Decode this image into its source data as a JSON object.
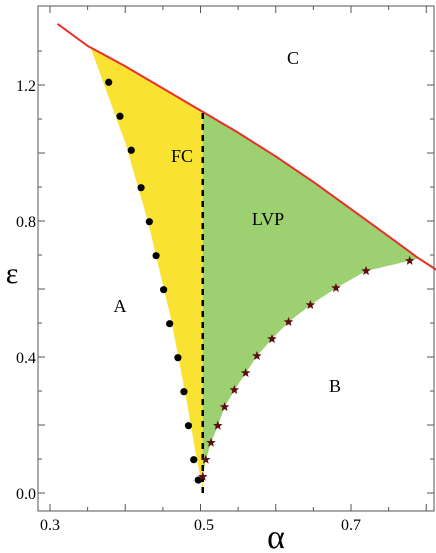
{
  "chart_data": {
    "type": "area",
    "title": "",
    "xlabel": "α",
    "ylabel": "ε",
    "xlim": [
      0.3,
      0.83
    ],
    "ylim": [
      -0.05,
      1.39
    ],
    "x_ticks": [
      "0.3",
      "0.5",
      "0.7"
    ],
    "y_ticks": [
      "0.0",
      "0.4",
      "0.8",
      "1.2"
    ],
    "x_tick_values": [
      0.3,
      0.5,
      0.7
    ],
    "y_tick_values": [
      0.0,
      0.4,
      0.8,
      1.2
    ],
    "grid": false,
    "region_labels": [
      {
        "text": "A",
        "x": 0.38,
        "y": 0.52
      },
      {
        "text": "B",
        "x": 0.67,
        "y": 0.31
      },
      {
        "text": "C",
        "x": 0.64,
        "y": 1.26
      },
      {
        "text": "FC",
        "x": 0.454,
        "y": 0.98
      },
      {
        "text": "LVP",
        "x": 0.58,
        "y": 0.82
      }
    ],
    "upper_boundary": {
      "color": "#e8302a",
      "x": [
        0.31,
        0.35,
        0.4,
        0.45,
        0.5,
        0.55,
        0.6,
        0.65,
        0.7,
        0.75,
        0.79,
        0.825
      ],
      "y": [
        1.38,
        1.315,
        1.255,
        1.19,
        1.125,
        1.06,
        0.99,
        0.915,
        0.835,
        0.755,
        0.69,
        0.64
      ]
    },
    "left_boundary": {
      "x": [
        0.354,
        0.4,
        0.43,
        0.46,
        0.48,
        0.495,
        0.503
      ],
      "y": [
        1.31,
        1.03,
        0.8,
        0.52,
        0.29,
        0.1,
        0.01
      ]
    },
    "fc_region": {
      "color": "#f9e232"
    },
    "lvp_region": {
      "color": "#9cd070"
    },
    "dashed_line": {
      "x": 0.503,
      "y": [
        0.0,
        1.125
      ]
    },
    "series": [
      {
        "marker": "circle",
        "color": "#000000",
        "x": [
          0.378,
          0.393,
          0.408,
          0.421,
          0.432,
          0.441,
          0.451,
          0.459,
          0.47,
          0.478,
          0.484,
          0.491,
          0.497
        ],
        "y": [
          1.208,
          1.108,
          1.008,
          0.898,
          0.798,
          0.698,
          0.598,
          0.498,
          0.398,
          0.298,
          0.198,
          0.098,
          0.038
        ]
      },
      {
        "marker": "star",
        "color": "#5a0e0e",
        "x": [
          0.503,
          0.507,
          0.514,
          0.523,
          0.532,
          0.545,
          0.56,
          0.575,
          0.595,
          0.617,
          0.646,
          0.68,
          0.72,
          0.778
        ],
        "y": [
          0.048,
          0.098,
          0.148,
          0.198,
          0.253,
          0.303,
          0.353,
          0.403,
          0.453,
          0.503,
          0.553,
          0.603,
          0.653,
          0.683
        ]
      }
    ]
  }
}
